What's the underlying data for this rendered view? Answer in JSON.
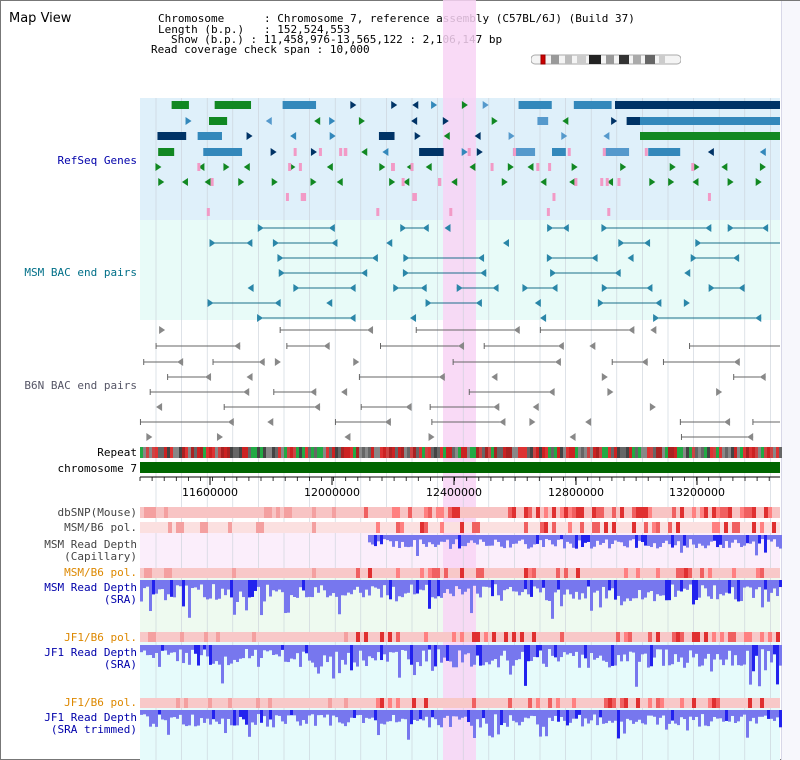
{
  "app": {
    "title": "Map View"
  },
  "info": {
    "chromosome_key": "Chromosome",
    "chromosome_value": "Chromosome 7, reference assembly (C57BL/6J) (Build 37)",
    "length_key": "Length (b.p.)",
    "length_value": "152,524,553",
    "show_key": "Show (b.p.)",
    "show_value": "11,458,976-13,565,122 : 2,106,147 bp",
    "coverage_key": "Read coverage check span",
    "coverage_value": "10,000"
  },
  "tracks": {
    "refseq": "RefSeq Genes",
    "msm_bac": "MSM BAC end pairs",
    "b6n_bac": "B6N BAC end pairs",
    "repeat": "Repeat",
    "chromosome": "chromosome 7",
    "dbsnp": "dbSNP(Mouse)",
    "msm_b6_pol": "MSM/B6 pol.",
    "msm_cap_1": "MSM Read Depth",
    "msm_cap_2": "(Capillary)",
    "msm_b6_pol2": "MSM/B6 pol.",
    "msm_sra_1": "MSM Read Depth",
    "msm_sra_2": "(SRA)",
    "jf1_b6_pol": "JF1/B6 pol.",
    "jf1_sra_1": "JF1 Read Depth",
    "jf1_sra_2": "(SRA)",
    "jf1_b6_pol2": "JF1/B6 pol.",
    "jf1_trim_1": "JF1 Read Depth",
    "jf1_trim_2": "(SRA trimmed)"
  },
  "axis": {
    "ticks": [
      "11600000",
      "12000000",
      "12400000",
      "12800000",
      "13200000"
    ]
  },
  "colors": {
    "refseq_bg": "#dff0fa",
    "bac_bg": "#e8fbf8",
    "highlight": "#f8d4f4",
    "label_blue": "#0000aa",
    "label_teal": "#006f88",
    "label_orange": "#dd8800",
    "chromosome_green": "#006600"
  }
}
